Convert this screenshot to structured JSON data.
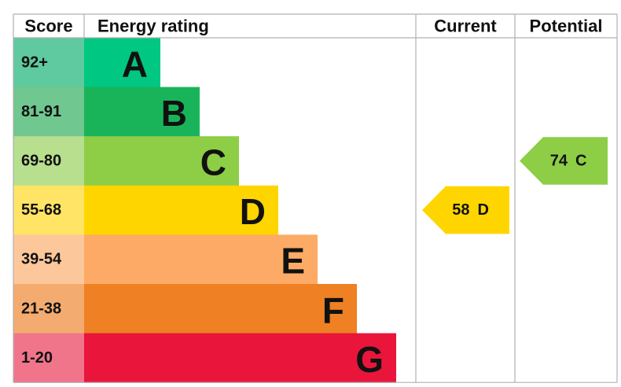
{
  "header": {
    "score": "Score",
    "rating": "Energy rating",
    "current": "Current",
    "potential": "Potential"
  },
  "bands": [
    {
      "score": "92+",
      "rating": "A",
      "color": "#00c781",
      "score_color": "#5fc9a0"
    },
    {
      "score": "81-91",
      "rating": "B",
      "color": "#19b459",
      "score_color": "#70c78f"
    },
    {
      "score": "69-80",
      "rating": "C",
      "color": "#8dce46",
      "score_color": "#b7df8e"
    },
    {
      "score": "55-68",
      "rating": "D",
      "color": "#ffd500",
      "score_color": "#ffe466"
    },
    {
      "score": "39-54",
      "rating": "E",
      "color": "#fcaa65",
      "score_color": "#fdc79c"
    },
    {
      "score": "21-38",
      "rating": "F",
      "color": "#ef8023",
      "score_color": "#f4ab6f"
    },
    {
      "score": "1-20",
      "rating": "G",
      "color": "#e9153b",
      "score_color": "#f0758b"
    }
  ],
  "current": {
    "value": 58,
    "rating": "D"
  },
  "potential": {
    "value": 74,
    "rating": "C"
  }
}
